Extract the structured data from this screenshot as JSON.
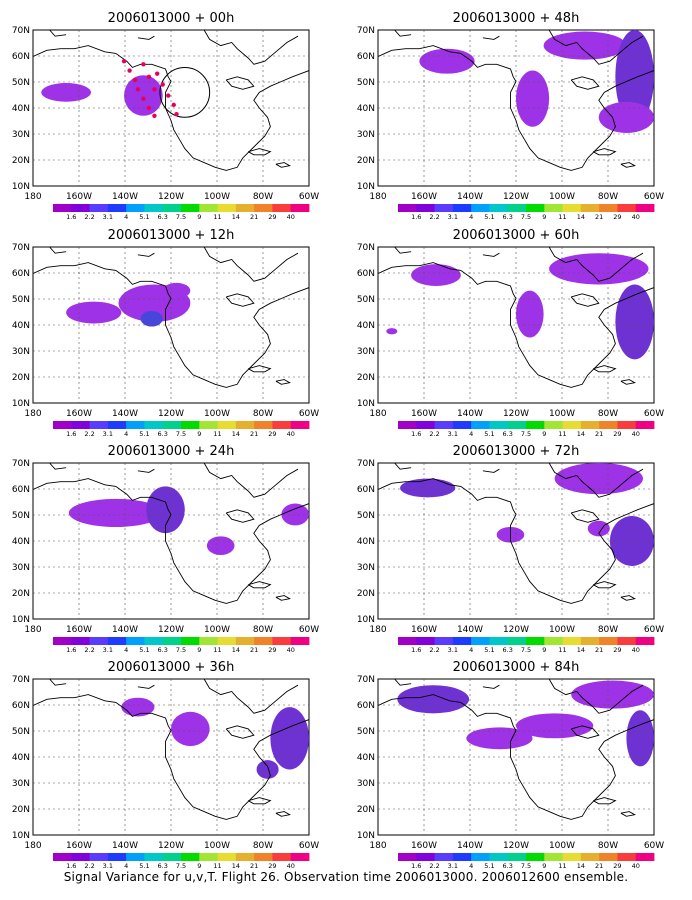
{
  "panels": [
    {
      "title": "2006013000 + 00h"
    },
    {
      "title": "2006013000 + 48h"
    },
    {
      "title": "2006013000 + 12h"
    },
    {
      "title": "2006013000 + 60h"
    },
    {
      "title": "2006013000 + 24h"
    },
    {
      "title": "2006013000 + 72h"
    },
    {
      "title": "2006013000 + 36h"
    },
    {
      "title": "2006013000 + 84h"
    }
  ],
  "lat_labels": [
    "70N",
    "60N",
    "50N",
    "40N",
    "30N",
    "20N",
    "10N"
  ],
  "lon_labels": [
    "180",
    "160W",
    "140W",
    "120W",
    "100W",
    "80W",
    "60W"
  ],
  "colorbar": {
    "labels": [
      "1.6",
      "2.2",
      "3.1",
      "4",
      "5.1",
      "6.3",
      "7.5",
      "9",
      "11",
      "14",
      "21",
      "29",
      "40"
    ],
    "colors": [
      "#a000c8",
      "#8200dc",
      "#5a3cff",
      "#1e3cff",
      "#00a0ff",
      "#00c8c8",
      "#00d28c",
      "#00dc00",
      "#a0e632",
      "#e6dc32",
      "#e6af2d",
      "#f08228",
      "#fa3c3c",
      "#f00082"
    ]
  },
  "shade_colors": {
    "low": "#9e32e6",
    "mid": "#6e32d2",
    "high": "#4646dc"
  },
  "footer": "Signal Variance for u,v,T. Flight 26. Observation time 2006013000. 2006012600 ensemble."
}
